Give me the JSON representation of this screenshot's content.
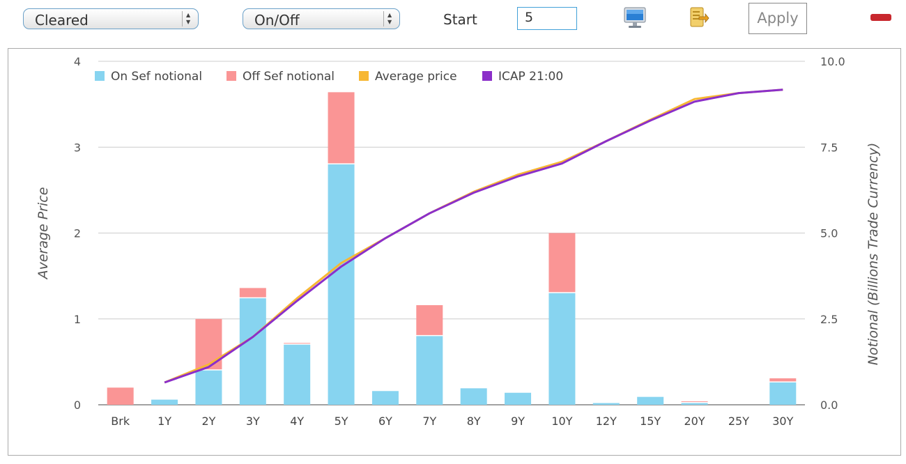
{
  "toolbar": {
    "clear_select": "Cleared",
    "sef_select": "On/Off",
    "start_label": "Start",
    "start_value": "5",
    "apply_label": "Apply"
  },
  "icons": {
    "screen": "monitor-icon",
    "export": "export-icon",
    "remove": "minus-icon"
  },
  "colors": {
    "on_sef": "#87d4f0",
    "off_sef": "#fa9595",
    "average_price": "#f7b733",
    "icap": "#8b2fc9",
    "grid": "#cccccc"
  },
  "chart_data": {
    "type": "bar",
    "categories": [
      "Brk",
      "1Y",
      "2Y",
      "3Y",
      "4Y",
      "5Y",
      "6Y",
      "7Y",
      "8Y",
      "9Y",
      "10Y",
      "12Y",
      "15Y",
      "20Y",
      "25Y",
      "30Y"
    ],
    "series": [
      {
        "name": "On Sef notional",
        "axis": "right",
        "type": "bar",
        "stack": "notional",
        "values": [
          0,
          0.15,
          1.0,
          3.1,
          1.75,
          7.0,
          0.4,
          2.0,
          0.48,
          0.35,
          3.25,
          0.05,
          0.23,
          0.05,
          0,
          0.65
        ]
      },
      {
        "name": "Off Sef notional",
        "axis": "right",
        "type": "bar",
        "stack": "notional",
        "values": [
          0.5,
          0,
          1.5,
          0.3,
          0.05,
          2.1,
          0,
          0.9,
          0,
          0,
          1.75,
          0,
          0.03,
          0.05,
          0,
          0.12
        ]
      },
      {
        "name": "Average price",
        "axis": "left",
        "type": "line",
        "values": [
          null,
          0.26,
          0.47,
          0.79,
          1.24,
          1.65,
          1.94,
          2.23,
          2.48,
          2.68,
          2.83,
          3.07,
          3.32,
          3.56,
          3.63,
          3.67
        ]
      },
      {
        "name": "ICAP 21:00",
        "axis": "left",
        "type": "line",
        "values": [
          null,
          0.26,
          0.44,
          0.79,
          1.21,
          1.61,
          1.94,
          2.23,
          2.47,
          2.66,
          2.81,
          3.07,
          3.31,
          3.53,
          3.63,
          3.67
        ]
      }
    ],
    "ylabel": "Average Price",
    "y2label": "Notional (Billions Trade Currency)",
    "ylim": [
      0,
      4
    ],
    "y2lim": [
      0,
      10
    ],
    "yticks": [
      "0",
      "1",
      "2",
      "3",
      "4"
    ],
    "y2ticks": [
      "0.0",
      "2.5",
      "5.0",
      "7.5",
      "10.0"
    ],
    "grid": true,
    "legend": "top-left"
  }
}
